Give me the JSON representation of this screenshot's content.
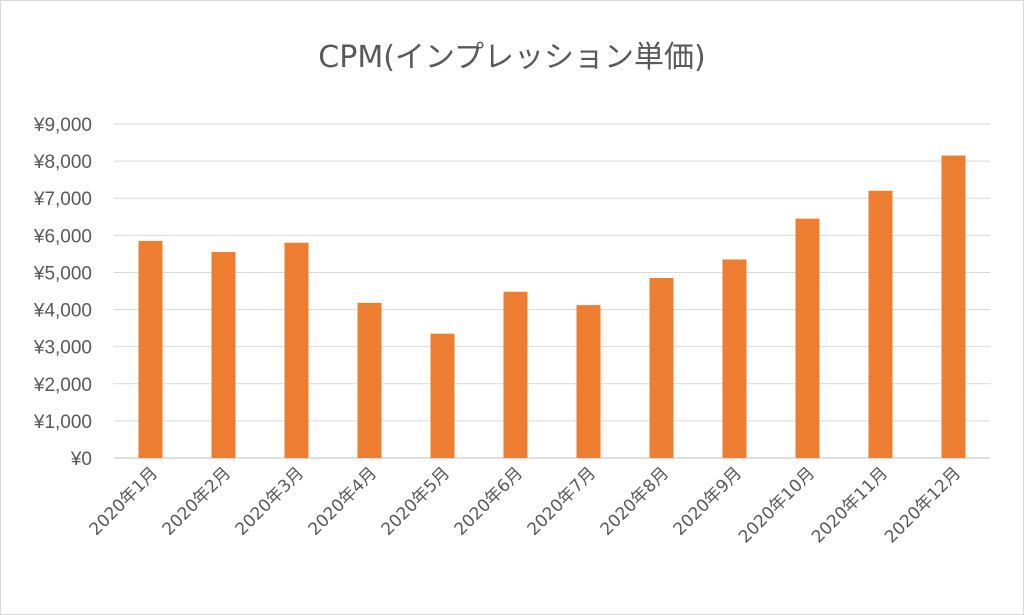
{
  "chart_data": {
    "type": "bar",
    "title": "CPM(インプレッション単価)",
    "categories": [
      "2020年1月",
      "2020年2月",
      "2020年3月",
      "2020年4月",
      "2020年5月",
      "2020年6月",
      "2020年7月",
      "2020年8月",
      "2020年9月",
      "2020年10月",
      "2020年11月",
      "2020年12月"
    ],
    "values": [
      5850,
      5550,
      5800,
      4180,
      3350,
      4480,
      4120,
      4850,
      5350,
      6450,
      7200,
      8150
    ],
    "ylim": [
      0,
      9000
    ],
    "y_ticks": [
      0,
      1000,
      2000,
      3000,
      4000,
      5000,
      6000,
      7000,
      8000,
      9000
    ],
    "y_tick_labels": [
      "¥0",
      "¥1,000",
      "¥2,000",
      "¥3,000",
      "¥4,000",
      "¥5,000",
      "¥6,000",
      "¥7,000",
      "¥8,000",
      "¥9,000"
    ],
    "bar_color": "#ED7D31",
    "grid": true,
    "xlabel": "",
    "ylabel": ""
  }
}
